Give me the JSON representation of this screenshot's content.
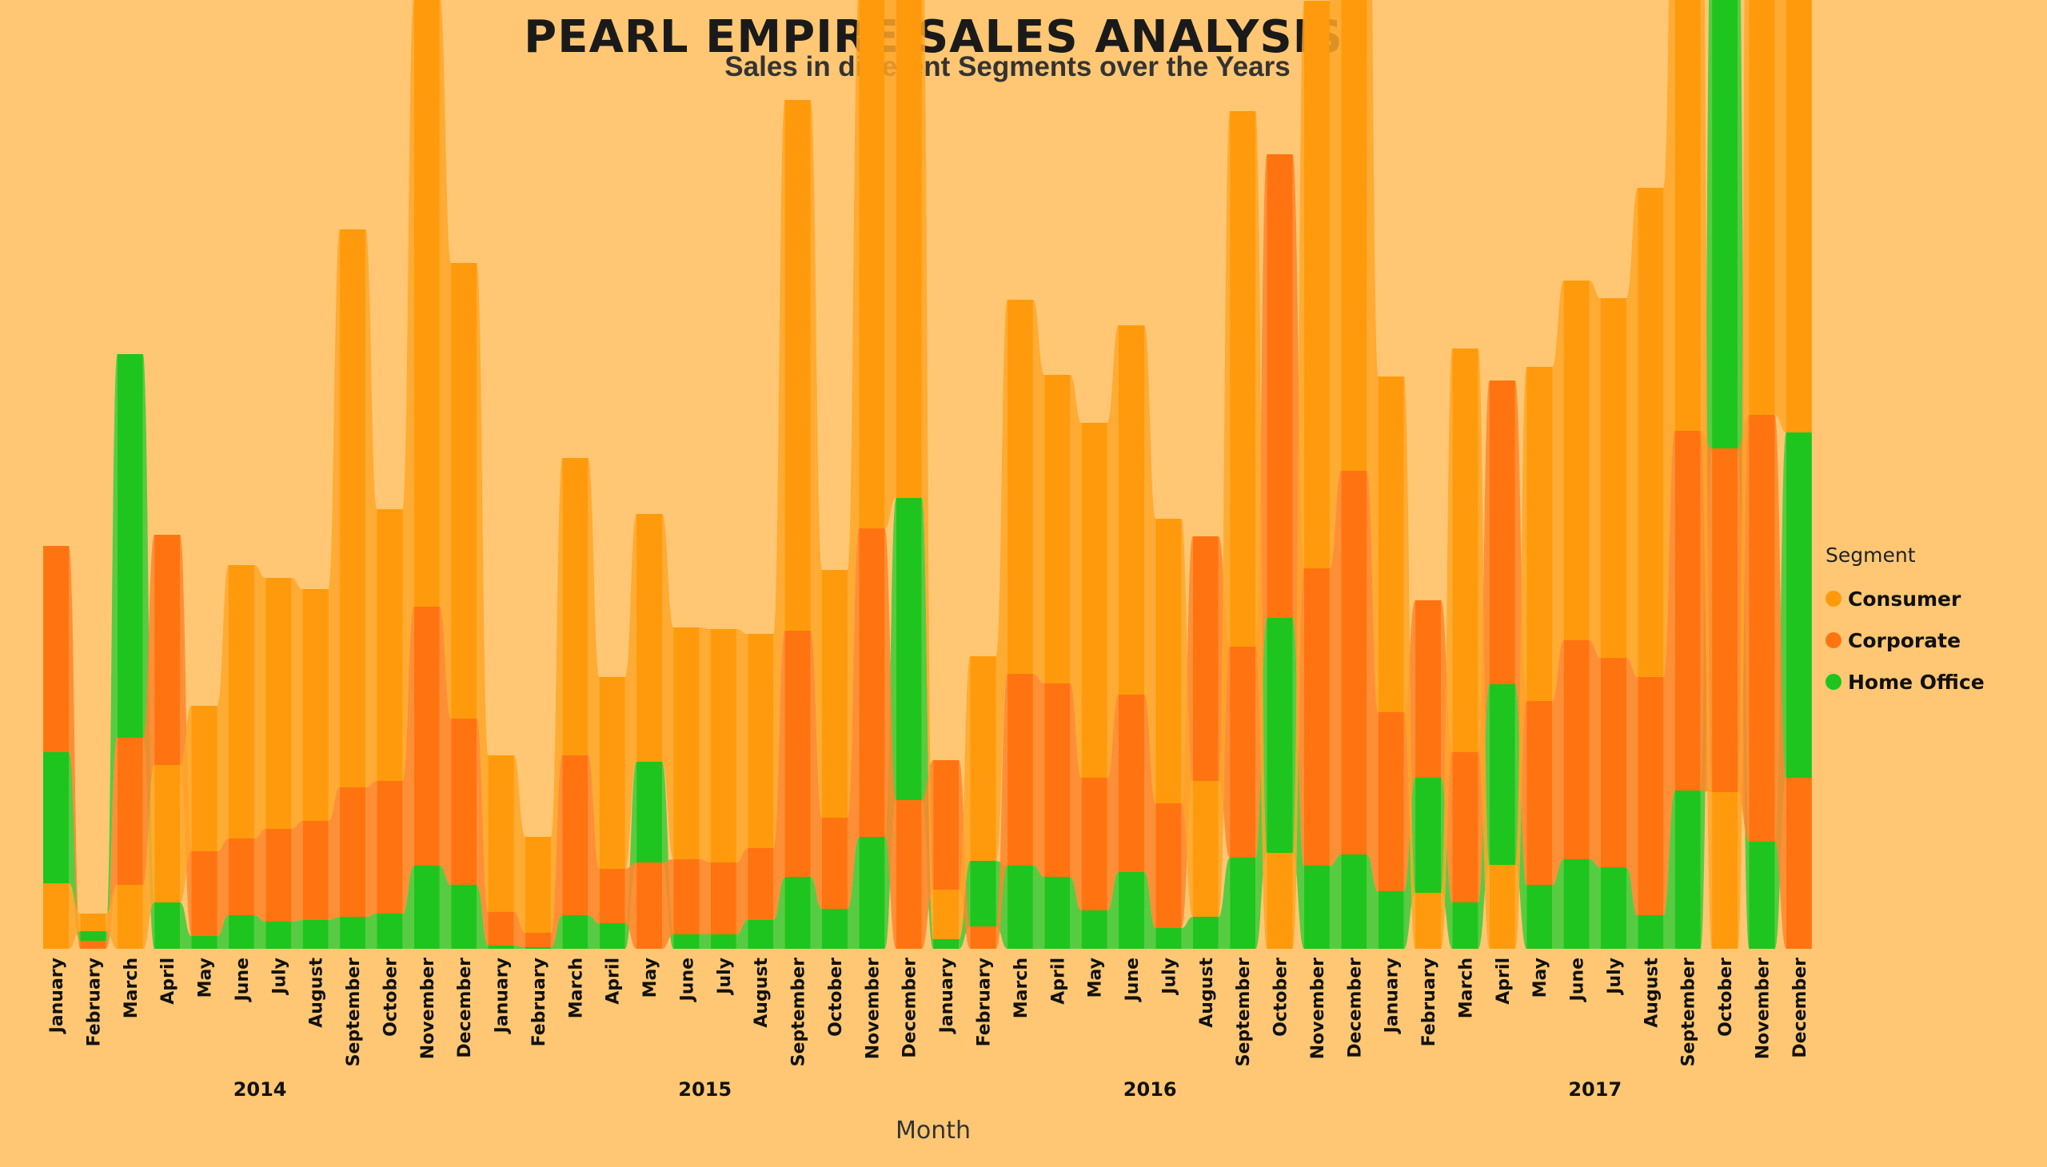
{
  "title": "PEARL EMPIRE SALES ANALYSIS",
  "subtitle": "Sales in different Segments over the Years",
  "legend": {
    "title": "Segment",
    "items": [
      {
        "label": "Consumer",
        "color": "#FF9A0C"
      },
      {
        "label": "Corporate",
        "color": "#FF7410"
      },
      {
        "label": "Home Office",
        "color": "#1EC51E"
      }
    ]
  },
  "chart_data": {
    "type": "area",
    "subtype": "ribbon",
    "xlabel": "Month",
    "ylabel": "",
    "grid": false,
    "legend_position": "right",
    "years": [
      "2014",
      "2015",
      "2016",
      "2017"
    ],
    "months": [
      "January",
      "February",
      "March",
      "April",
      "May",
      "June",
      "July",
      "August",
      "September",
      "October",
      "November",
      "December"
    ],
    "series": [
      {
        "name": "Consumer",
        "color": "#FF9A0C",
        "values": [
          82,
          22,
          80,
          172,
          182,
          342,
          314,
          290,
          698,
          340,
          764,
          570,
          196,
          120,
          372,
          240,
          310,
          290,
          292,
          268,
          664,
          310,
          674,
          750,
          62,
          256,
          468,
          386,
          444,
          462,
          356,
          170,
          670,
          120,
          710,
          1000,
          420,
          70,
          505,
          105,
          418,
          450,
          450,
          612,
          870,
          196,
          1000,
          925
        ]
      },
      {
        "name": "Corporate",
        "color": "#FF7410",
        "values": [
          258,
          10,
          184,
          288,
          106,
          96,
          116,
          124,
          162,
          166,
          324,
          208,
          42,
          18,
          200,
          68,
          108,
          94,
          90,
          90,
          308,
          114,
          386,
          186,
          162,
          28,
          240,
          242,
          166,
          222,
          156,
          306,
          264,
          580,
          372,
          480,
          224,
          222,
          188,
          380,
          230,
          274,
          262,
          298,
          450,
          430,
          534,
          214
        ]
      },
      {
        "name": "Home Office",
        "color": "#1EC51E",
        "values": [
          164,
          12,
          480,
          58,
          16,
          42,
          34,
          36,
          40,
          44,
          104,
          80,
          4,
          2,
          42,
          32,
          126,
          18,
          18,
          36,
          90,
          50,
          140,
          378,
          12,
          82,
          104,
          90,
          48,
          96,
          26,
          40,
          114,
          294,
          104,
          118,
          72,
          144,
          58,
          226,
          80,
          112,
          102,
          42,
          198,
          718,
          134,
          432
        ]
      }
    ]
  }
}
